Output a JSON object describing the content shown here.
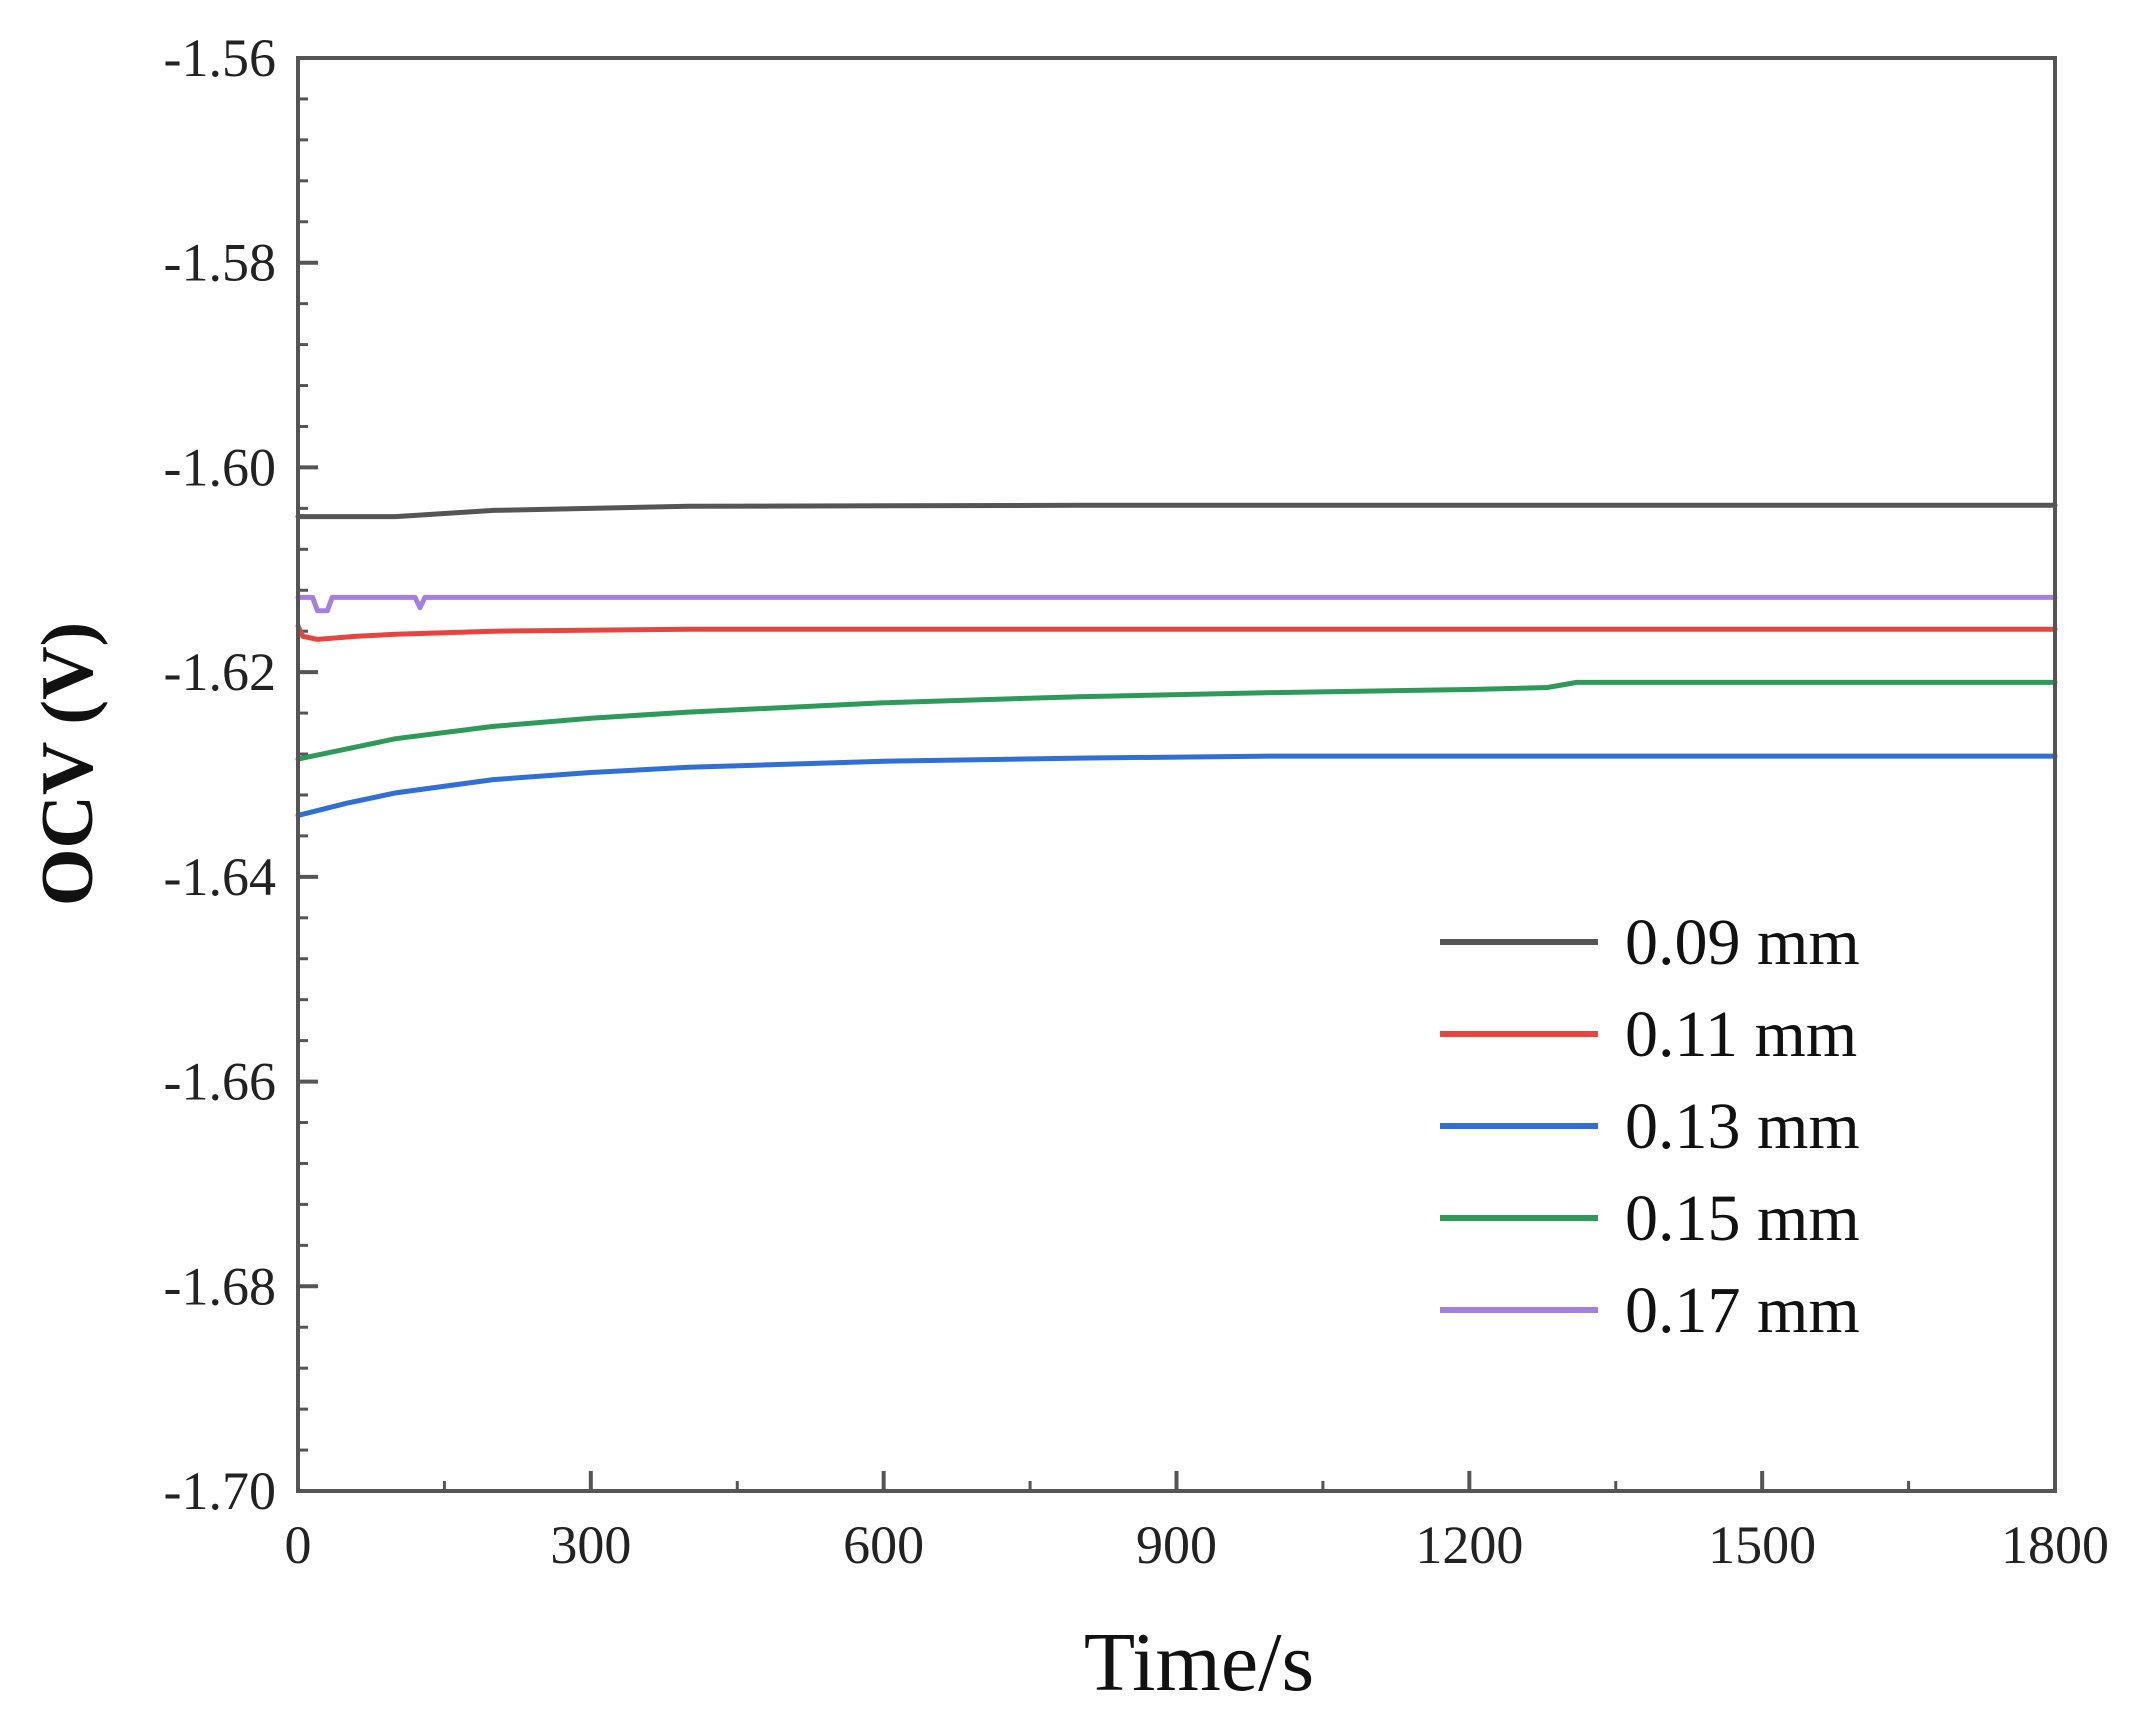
{
  "chart_data": {
    "type": "line",
    "title": "",
    "xlabel": "Time/s",
    "ylabel": "OCV (V)",
    "xlim": [
      0,
      1800
    ],
    "ylim": [
      -1.7,
      -1.56
    ],
    "x_ticks": [
      0,
      300,
      600,
      900,
      1200,
      1500,
      1800
    ],
    "x_tick_labels": [
      "0",
      "300",
      "600",
      "900",
      "1200",
      "1500",
      "1800"
    ],
    "y_ticks": [
      -1.56,
      -1.58,
      -1.6,
      -1.62,
      -1.64,
      -1.66,
      -1.68,
      -1.7
    ],
    "y_tick_labels": [
      "-1.56",
      "-1.58",
      "-1.60",
      "-1.62",
      "-1.64",
      "-1.66",
      "-1.68",
      "-1.70"
    ],
    "grid": false,
    "legend_position": "bottom-right",
    "series": [
      {
        "name": "0.09 mm",
        "color": "#555555",
        "x": [
          0,
          100,
          200,
          400,
          800,
          1200,
          1800
        ],
        "values": [
          -1.6048,
          -1.6048,
          -1.6042,
          -1.6038,
          -1.6037,
          -1.6037,
          -1.6037
        ]
      },
      {
        "name": "0.11 mm",
        "color": "#e8443f",
        "x": [
          0,
          5,
          20,
          60,
          100,
          200,
          400,
          800,
          1200,
          1800
        ],
        "values": [
          -1.6155,
          -1.6165,
          -1.6168,
          -1.6165,
          -1.6163,
          -1.616,
          -1.6158,
          -1.6158,
          -1.6158,
          -1.6158
        ]
      },
      {
        "name": "0.13 mm",
        "color": "#2f6fd6",
        "x": [
          0,
          50,
          100,
          200,
          300,
          400,
          600,
          800,
          1000,
          1200,
          1500,
          1800
        ],
        "values": [
          -1.634,
          -1.6328,
          -1.6318,
          -1.6305,
          -1.6298,
          -1.6293,
          -1.6287,
          -1.6284,
          -1.6282,
          -1.6282,
          -1.6282,
          -1.6282
        ]
      },
      {
        "name": "0.15 mm",
        "color": "#2e9a5a",
        "x": [
          0,
          50,
          100,
          200,
          300,
          400,
          600,
          800,
          1000,
          1200,
          1280,
          1310,
          1500,
          1800
        ],
        "values": [
          -1.6285,
          -1.6275,
          -1.6265,
          -1.6253,
          -1.6245,
          -1.6239,
          -1.623,
          -1.6224,
          -1.622,
          -1.6217,
          -1.6215,
          -1.621,
          -1.621,
          -1.621
        ]
      },
      {
        "name": "0.17 mm",
        "color": "#a57fe0",
        "x": [
          0,
          15,
          20,
          30,
          35,
          120,
          125,
          130,
          200,
          600,
          1200,
          1800
        ],
        "values": [
          -1.6127,
          -1.6127,
          -1.614,
          -1.614,
          -1.6127,
          -1.6127,
          -1.6137,
          -1.6127,
          -1.6127,
          -1.6127,
          -1.6127,
          -1.6127
        ]
      }
    ]
  }
}
